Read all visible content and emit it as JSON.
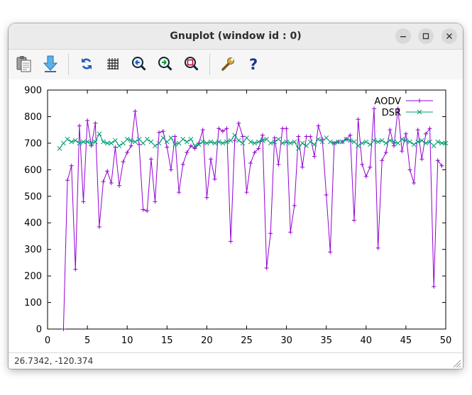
{
  "window": {
    "title": "Gnuplot (window id : 0)"
  },
  "toolbar": {
    "items": [
      {
        "icon": "clipboard-icon"
      },
      {
        "icon": "export-arrow-icon"
      },
      {
        "icon": "replot-icon"
      },
      {
        "icon": "grid-icon"
      },
      {
        "icon": "zoom-previous-icon"
      },
      {
        "icon": "zoom-next-icon"
      },
      {
        "icon": "autoscale-icon"
      },
      {
        "icon": "options-wrench-icon"
      },
      {
        "icon": "help-icon"
      }
    ]
  },
  "status": {
    "coords": "26.7342, -120.374"
  },
  "chart_data": {
    "type": "line",
    "xlim": [
      0,
      50
    ],
    "ylim": [
      0,
      900
    ],
    "xticks": [
      0,
      5,
      10,
      15,
      20,
      25,
      30,
      35,
      40,
      45,
      50
    ],
    "yticks": [
      0,
      100,
      200,
      300,
      400,
      500,
      600,
      700,
      800,
      900
    ],
    "legend_position": "top-right",
    "series": [
      {
        "name": "AODV",
        "color": "#9400d3",
        "marker": "plus",
        "x": [
          2,
          2.5,
          3,
          3.5,
          4,
          4.5,
          5,
          5.5,
          6,
          6.5,
          7,
          7.5,
          8,
          8.5,
          9,
          9.5,
          10,
          10.5,
          11,
          11.5,
          12,
          12.5,
          13,
          13.5,
          14,
          14.5,
          15,
          15.5,
          16,
          16.5,
          17,
          17.5,
          18,
          18.5,
          19,
          19.5,
          20,
          20.5,
          21,
          21.5,
          22,
          22.5,
          23,
          23.5,
          24,
          24.5,
          25,
          25.5,
          26,
          26.5,
          27,
          27.5,
          28,
          28.5,
          29,
          29.5,
          30,
          30.5,
          31,
          31.5,
          32,
          32.5,
          33,
          33.5,
          34,
          34.5,
          35,
          35.5,
          36,
          36.5,
          37,
          37.5,
          38,
          38.5,
          39,
          39.5,
          40,
          40.5,
          41,
          41.5,
          42,
          42.5,
          43,
          43.5,
          44,
          44.5,
          45,
          45.5,
          46,
          46.5,
          47,
          47.5,
          48,
          48.5,
          49,
          49.5
        ],
        "values": [
          0,
          560,
          615,
          225,
          765,
          480,
          785,
          690,
          775,
          385,
          555,
          595,
          550,
          685,
          540,
          630,
          665,
          690,
          820,
          695,
          450,
          445,
          640,
          480,
          740,
          745,
          685,
          600,
          725,
          515,
          620,
          665,
          690,
          680,
          700,
          750,
          495,
          640,
          565,
          755,
          745,
          755,
          330,
          710,
          775,
          725,
          515,
          625,
          665,
          680,
          730,
          230,
          360,
          720,
          620,
          755,
          755,
          365,
          465,
          725,
          610,
          725,
          725,
          650,
          765,
          715,
          505,
          290,
          700,
          705,
          705,
          715,
          730,
          410,
          790,
          620,
          575,
          610,
          830,
          305,
          635,
          665,
          750,
          690,
          830,
          670,
          735,
          600,
          550,
          750,
          640,
          735,
          755,
          160,
          635,
          615
        ]
      },
      {
        "name": "DSR",
        "color": "#009e73",
        "marker": "x",
        "x": [
          1.5,
          2,
          2.5,
          3,
          3.5,
          4,
          4.5,
          5,
          5.5,
          6,
          6.5,
          7,
          7.5,
          8,
          8.5,
          9,
          9.5,
          10,
          10.5,
          11,
          11.5,
          12,
          12.5,
          13,
          13.5,
          14,
          14.5,
          15,
          15.5,
          16,
          16.5,
          17,
          17.5,
          18,
          18.5,
          19,
          19.5,
          20,
          20.5,
          21,
          21.5,
          22,
          22.5,
          23,
          23.5,
          24,
          24.5,
          25,
          25.5,
          26,
          26.5,
          27,
          27.5,
          28,
          28.5,
          29,
          29.5,
          30,
          30.5,
          31,
          31.5,
          32,
          32.5,
          33,
          33.5,
          34,
          34.5,
          35,
          35.5,
          36,
          36.5,
          37,
          37.5,
          38,
          38.5,
          39,
          39.5,
          40,
          40.5,
          41,
          41.5,
          42,
          42.5,
          43,
          43.5,
          44,
          44.5,
          45,
          45.5,
          46,
          46.5,
          47,
          47.5,
          48,
          48.5,
          49,
          49.5,
          50
        ],
        "values": [
          680,
          700,
          715,
          705,
          710,
          700,
          705,
          705,
          700,
          705,
          735,
          705,
          700,
          700,
          710,
          690,
          700,
          715,
          710,
          705,
          715,
          700,
          715,
          705,
          690,
          700,
          720,
          705,
          720,
          695,
          700,
          715,
          705,
          715,
          690,
          695,
          705,
          700,
          705,
          700,
          705,
          700,
          705,
          710,
          730,
          710,
          700,
          720,
          705,
          700,
          705,
          710,
          715,
          700,
          705,
          715,
          700,
          705,
          700,
          705,
          680,
          700,
          690,
          705,
          695,
          715,
          705,
          720,
          705,
          700,
          705,
          705,
          715,
          710,
          705,
          690,
          700,
          705,
          695,
          710,
          705,
          710,
          700,
          710,
          705,
          700,
          715,
          710,
          705,
          695,
          705,
          710,
          700,
          705,
          690,
          705,
          700,
          700
        ]
      }
    ]
  }
}
